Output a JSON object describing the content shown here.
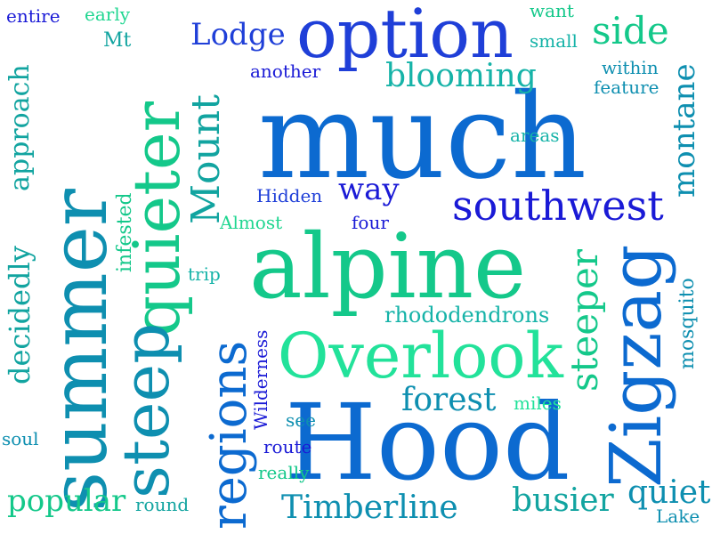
{
  "words": {
    "much": "much",
    "option": "option",
    "alpine": "alpine",
    "hood": "Hood",
    "overlook": "Overlook",
    "summer": "summer",
    "quieter": "quieter",
    "steep": "steep",
    "zigzag": "Zigzag",
    "regions": "regions",
    "southwest": "southwest",
    "timberline": "Timberline",
    "mount": "Mount",
    "lodge": "Lodge",
    "side": "side",
    "blooming": "blooming",
    "steeper": "steeper",
    "forest": "forest",
    "busier": "busier",
    "quiet": "quiet",
    "popular": "popular",
    "decidedly": "decidedly",
    "approach": "approach",
    "montane": "montane",
    "rhododendrons": "rhododendrons",
    "way": "way",
    "hidden": "Hidden",
    "almost": "Almost",
    "four": "four",
    "trip": "trip",
    "infested": "infested",
    "wilderness": "Wilderness",
    "mosquito": "mosquito",
    "miles": "miles",
    "see": "see",
    "route": "route",
    "really": "really",
    "round": "round",
    "soul": "soul",
    "lake": "Lake",
    "entire": "entire",
    "early": "early",
    "mt": "Mt",
    "want": "want",
    "small": "small",
    "within": "within",
    "feature": "feature",
    "another": "another",
    "areas": "areas"
  }
}
